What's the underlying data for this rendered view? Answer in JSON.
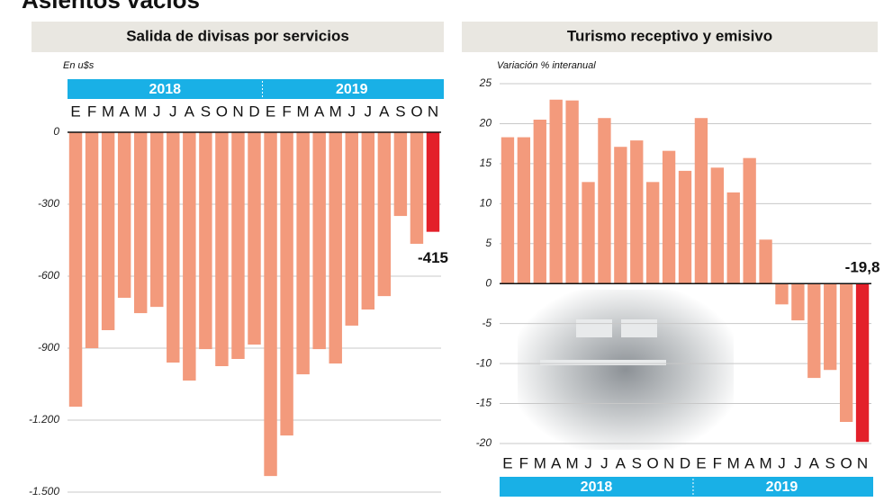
{
  "page": {
    "headline": "Asientos vacíos"
  },
  "chart_data": [
    {
      "type": "bar",
      "title": "Salida de divisas por servicios",
      "unit_label": "En u$s",
      "categories": [
        "E",
        "F",
        "M",
        "A",
        "M",
        "J",
        "J",
        "A",
        "S",
        "O",
        "N",
        "D",
        "E",
        "F",
        "M",
        "A",
        "M",
        "J",
        "J",
        "A",
        "S",
        "O",
        "N"
      ],
      "years": [
        "2018",
        "2019"
      ],
      "year_band": "top",
      "values": [
        -1144,
        -900,
        -825,
        -690,
        -754,
        -728,
        -960,
        -1035,
        -904,
        -975,
        -945,
        -885,
        -1433,
        -1264,
        -1009,
        -904,
        -964,
        -806,
        -739,
        -683,
        -349,
        -465,
        -415
      ],
      "color": "#f39a7c",
      "highlight_color": "#e3202a",
      "highlight_last": true,
      "ylim": [
        -1500,
        0
      ],
      "yticks": [
        0,
        -300,
        -600,
        -900,
        {
          "value": -1200,
          "label": "-1.200"
        },
        {
          "value": -1500,
          "label": "-1.500"
        }
      ],
      "grid": true
    },
    {
      "type": "bar",
      "title": "Turismo receptivo y emisivo",
      "unit_label": "Variación % interanual",
      "categories": [
        "E",
        "F",
        "M",
        "A",
        "M",
        "J",
        "J",
        "A",
        "S",
        "O",
        "N",
        "D",
        "E",
        "F",
        "M",
        "A",
        "M",
        "J",
        "J",
        "A",
        "S",
        "O",
        "N"
      ],
      "years": [
        "2018",
        "2019"
      ],
      "year_band": "bottom",
      "values": [
        18.3,
        18.3,
        20.5,
        23.0,
        22.9,
        12.7,
        20.7,
        17.1,
        17.9,
        12.7,
        16.6,
        14.1,
        20.7,
        14.5,
        11.4,
        15.7,
        5.5,
        -2.6,
        -4.6,
        -11.8,
        -10.8,
        -17.3,
        -19.8
      ],
      "value_labels": [
        null,
        null,
        null,
        null,
        null,
        null,
        null,
        null,
        null,
        null,
        null,
        null,
        null,
        null,
        null,
        null,
        null,
        null,
        null,
        null,
        null,
        null,
        "-19,8"
      ],
      "color": "#f39a7c",
      "highlight_color": "#e3202a",
      "highlight_last": true,
      "ylim": [
        -20,
        25
      ],
      "yticks": [
        25,
        20,
        15,
        10,
        5,
        0,
        -5,
        -10,
        -15,
        -20
      ],
      "grid": true
    }
  ]
}
